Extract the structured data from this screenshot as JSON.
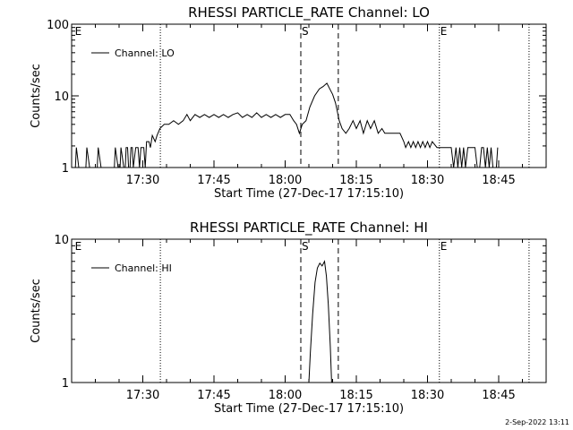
{
  "chart_data": [
    {
      "type": "line",
      "title": "RHESSI PARTICLE_RATE Channel: LO",
      "xlabel": "Start Time (27-Dec-17 17:15:10)",
      "ylabel": "Counts/sec",
      "x_unit": "minutes after 17:15:10",
      "x_tick_labels": [
        "17:30",
        "17:45",
        "18:00",
        "18:15",
        "18:30",
        "18:45"
      ],
      "y_scale": "log",
      "ylim": [
        1,
        100
      ],
      "y_tick_labels": [
        "1",
        "10",
        "100"
      ],
      "legend": {
        "position": "top-left",
        "label": "Channel: LO"
      },
      "markers": [
        {
          "label": "E",
          "x": 0.5,
          "style": "none"
        },
        {
          "label": "",
          "x": 18.7,
          "style": "dotted"
        },
        {
          "label": "S",
          "x": 48.3,
          "style": "dashed"
        },
        {
          "label": "",
          "x": 56.2,
          "style": "dashed"
        },
        {
          "label": "E",
          "x": 77.5,
          "style": "dotted"
        },
        {
          "label": "",
          "x": 96.4,
          "style": "dotted"
        }
      ],
      "series": [
        {
          "name": "Channel: LO",
          "points": [
            [
              0,
              1
            ],
            [
              0.8,
              1
            ],
            [
              1,
              1.9
            ],
            [
              1.5,
              1
            ],
            [
              3,
              1
            ],
            [
              3.2,
              1.9
            ],
            [
              3.8,
              1
            ],
            [
              5.4,
              1
            ],
            [
              5.6,
              1.9
            ],
            [
              6.2,
              1
            ],
            [
              9,
              1
            ],
            [
              9.2,
              1.9
            ],
            [
              9.8,
              1
            ],
            [
              10.2,
              1
            ],
            [
              10.4,
              1.9
            ],
            [
              11,
              1
            ],
            [
              11.3,
              1
            ],
            [
              11.5,
              1.9
            ],
            [
              11.8,
              1.9
            ],
            [
              12,
              1
            ],
            [
              12.3,
              1
            ],
            [
              12.5,
              1.9
            ],
            [
              12.8,
              1.9
            ],
            [
              13,
              1
            ],
            [
              13.5,
              1.9
            ],
            [
              14,
              1.9
            ],
            [
              14.3,
              1
            ],
            [
              14.6,
              1.9
            ],
            [
              15.2,
              1.9
            ],
            [
              15.5,
              1
            ],
            [
              15.8,
              2.3
            ],
            [
              16.3,
              2.3
            ],
            [
              16.6,
              1.9
            ],
            [
              17,
              2.8
            ],
            [
              17.6,
              2.3
            ],
            [
              18,
              2.8
            ],
            [
              18.6,
              3.5
            ],
            [
              19.5,
              4
            ],
            [
              20.5,
              4
            ],
            [
              21.5,
              4.5
            ],
            [
              22.5,
              4
            ],
            [
              23.5,
              4.5
            ],
            [
              24.3,
              5.5
            ],
            [
              25,
              4.5
            ],
            [
              26,
              5.5
            ],
            [
              27,
              5
            ],
            [
              28,
              5.5
            ],
            [
              29,
              5
            ],
            [
              30,
              5.5
            ],
            [
              31,
              5
            ],
            [
              32,
              5.5
            ],
            [
              33,
              5
            ],
            [
              34,
              5.5
            ],
            [
              35,
              5.8
            ],
            [
              36,
              5
            ],
            [
              37,
              5.5
            ],
            [
              38,
              5
            ],
            [
              39,
              5.8
            ],
            [
              40,
              5
            ],
            [
              41,
              5.5
            ],
            [
              42,
              5
            ],
            [
              43,
              5.5
            ],
            [
              44,
              5
            ],
            [
              45,
              5.5
            ],
            [
              46,
              5.5
            ],
            [
              46.8,
              4.5
            ],
            [
              47.4,
              4
            ],
            [
              48,
              3
            ],
            [
              48.6,
              4
            ],
            [
              49.4,
              4.5
            ],
            [
              50.2,
              7
            ],
            [
              51.2,
              10
            ],
            [
              52.2,
              12.5
            ],
            [
              53,
              13.5
            ],
            [
              53.8,
              15
            ],
            [
              54.4,
              12.5
            ],
            [
              55,
              10.5
            ],
            [
              55.6,
              8
            ],
            [
              56,
              6
            ],
            [
              56.4,
              4.5
            ],
            [
              57,
              3.5
            ],
            [
              57.8,
              3
            ],
            [
              58.5,
              3.5
            ],
            [
              59.3,
              4.5
            ],
            [
              60,
              3.5
            ],
            [
              60.8,
              4.5
            ],
            [
              61.5,
              3
            ],
            [
              62.3,
              4.5
            ],
            [
              63,
              3.5
            ],
            [
              63.8,
              4.5
            ],
            [
              64.6,
              3
            ],
            [
              65.4,
              3.5
            ],
            [
              66,
              3
            ],
            [
              66.8,
              3
            ],
            [
              67.6,
              3
            ],
            [
              68.4,
              3
            ],
            [
              69.2,
              3
            ],
            [
              70,
              2.3
            ],
            [
              70.4,
              1.9
            ],
            [
              71,
              2.3
            ],
            [
              71.5,
              1.9
            ],
            [
              72,
              2.3
            ],
            [
              72.5,
              1.9
            ],
            [
              73,
              2.3
            ],
            [
              73.5,
              1.9
            ],
            [
              74,
              2.3
            ],
            [
              74.5,
              1.9
            ],
            [
              75,
              2.3
            ],
            [
              75.5,
              1.9
            ],
            [
              76,
              2.3
            ],
            [
              77,
              1.9
            ],
            [
              78,
              1.9
            ],
            [
              79,
              1.9
            ],
            [
              80,
              1.9
            ],
            [
              80.5,
              1
            ],
            [
              81,
              1.9
            ],
            [
              81.4,
              1
            ],
            [
              81.8,
              1.9
            ],
            [
              82.2,
              1
            ],
            [
              82.6,
              1.9
            ],
            [
              83,
              1
            ],
            [
              83.5,
              1.9
            ],
            [
              84,
              1.9
            ],
            [
              85,
              1.9
            ],
            [
              85.5,
              1
            ],
            [
              86,
              1
            ],
            [
              86.4,
              1.9
            ],
            [
              86.8,
              1.9
            ],
            [
              87.2,
              1
            ],
            [
              87.6,
              1.9
            ],
            [
              88,
              1
            ],
            [
              88.4,
              1.9
            ],
            [
              88.8,
              1
            ],
            [
              89.5,
              1
            ],
            [
              89.8,
              1.9
            ]
          ]
        }
      ]
    },
    {
      "type": "line",
      "title": "RHESSI PARTICLE_RATE Channel: HI",
      "xlabel": "Start Time (27-Dec-17 17:15:10)",
      "ylabel": "Counts/sec",
      "x_unit": "minutes after 17:15:10",
      "x_tick_labels": [
        "17:30",
        "17:45",
        "18:00",
        "18:15",
        "18:30",
        "18:45"
      ],
      "y_scale": "log",
      "ylim": [
        1,
        10
      ],
      "y_tick_labels": [
        "1",
        "10"
      ],
      "legend": {
        "position": "top-left",
        "label": "Channel: HI"
      },
      "markers": [
        {
          "label": "E",
          "x": 0.5,
          "style": "none"
        },
        {
          "label": "",
          "x": 18.7,
          "style": "dotted"
        },
        {
          "label": "S",
          "x": 48.3,
          "style": "dashed"
        },
        {
          "label": "",
          "x": 56.2,
          "style": "dashed"
        },
        {
          "label": "E",
          "x": 77.5,
          "style": "dotted"
        },
        {
          "label": "",
          "x": 96.4,
          "style": "dotted"
        }
      ],
      "series": [
        {
          "name": "Channel: HI",
          "points": [
            [
              50,
              1
            ],
            [
              50.3,
              1.6
            ],
            [
              50.8,
              3
            ],
            [
              51.3,
              5
            ],
            [
              51.8,
              6.3
            ],
            [
              52.3,
              6.8
            ],
            [
              52.8,
              6.5
            ],
            [
              53.3,
              7
            ],
            [
              53.7,
              5.5
            ],
            [
              54.1,
              3.5
            ],
            [
              54.5,
              1.8
            ],
            [
              54.8,
              1
            ]
          ]
        }
      ]
    }
  ],
  "timestamp": "2-Sep-2022 13:11"
}
